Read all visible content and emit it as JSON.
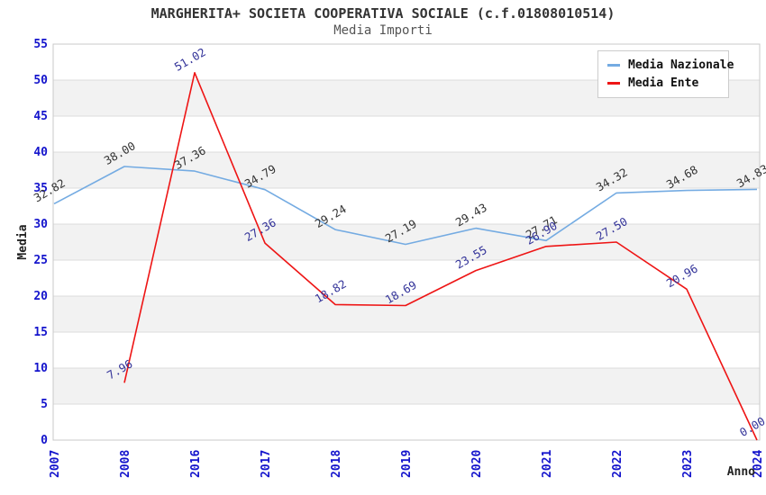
{
  "chart_data": {
    "type": "line",
    "title": "MARGHERITA+ SOCIETA COOPERATIVA SOCIALE (c.f.01808010514)",
    "subtitle": "Media Importi",
    "xlabel": "Anno",
    "ylabel": "Media",
    "categories": [
      "2007",
      "2008",
      "2016",
      "2017",
      "2018",
      "2019",
      "2020",
      "2021",
      "2022",
      "2023",
      "2024"
    ],
    "series": [
      {
        "name": "Media Nazionale",
        "color": "#74abe2",
        "label_color": "#333333",
        "values": [
          32.82,
          38.0,
          37.36,
          34.79,
          29.24,
          27.19,
          29.43,
          27.71,
          34.32,
          34.68,
          34.83
        ]
      },
      {
        "name": "Media Ente",
        "color": "#ee1515",
        "label_color": "#333399",
        "values": [
          null,
          7.96,
          51.02,
          27.36,
          18.82,
          18.69,
          23.55,
          26.9,
          27.5,
          20.96,
          0.0
        ]
      }
    ],
    "ylim": [
      0,
      55
    ],
    "ytick_step": 5,
    "grid": true,
    "legend_position": "top-right",
    "style": {
      "tick_label_color": "#1414cc",
      "band_color": "#f2f2f2",
      "grid_color": "#dcdcdc",
      "border_color": "#c8c8c8",
      "background": "#ffffff"
    }
  }
}
